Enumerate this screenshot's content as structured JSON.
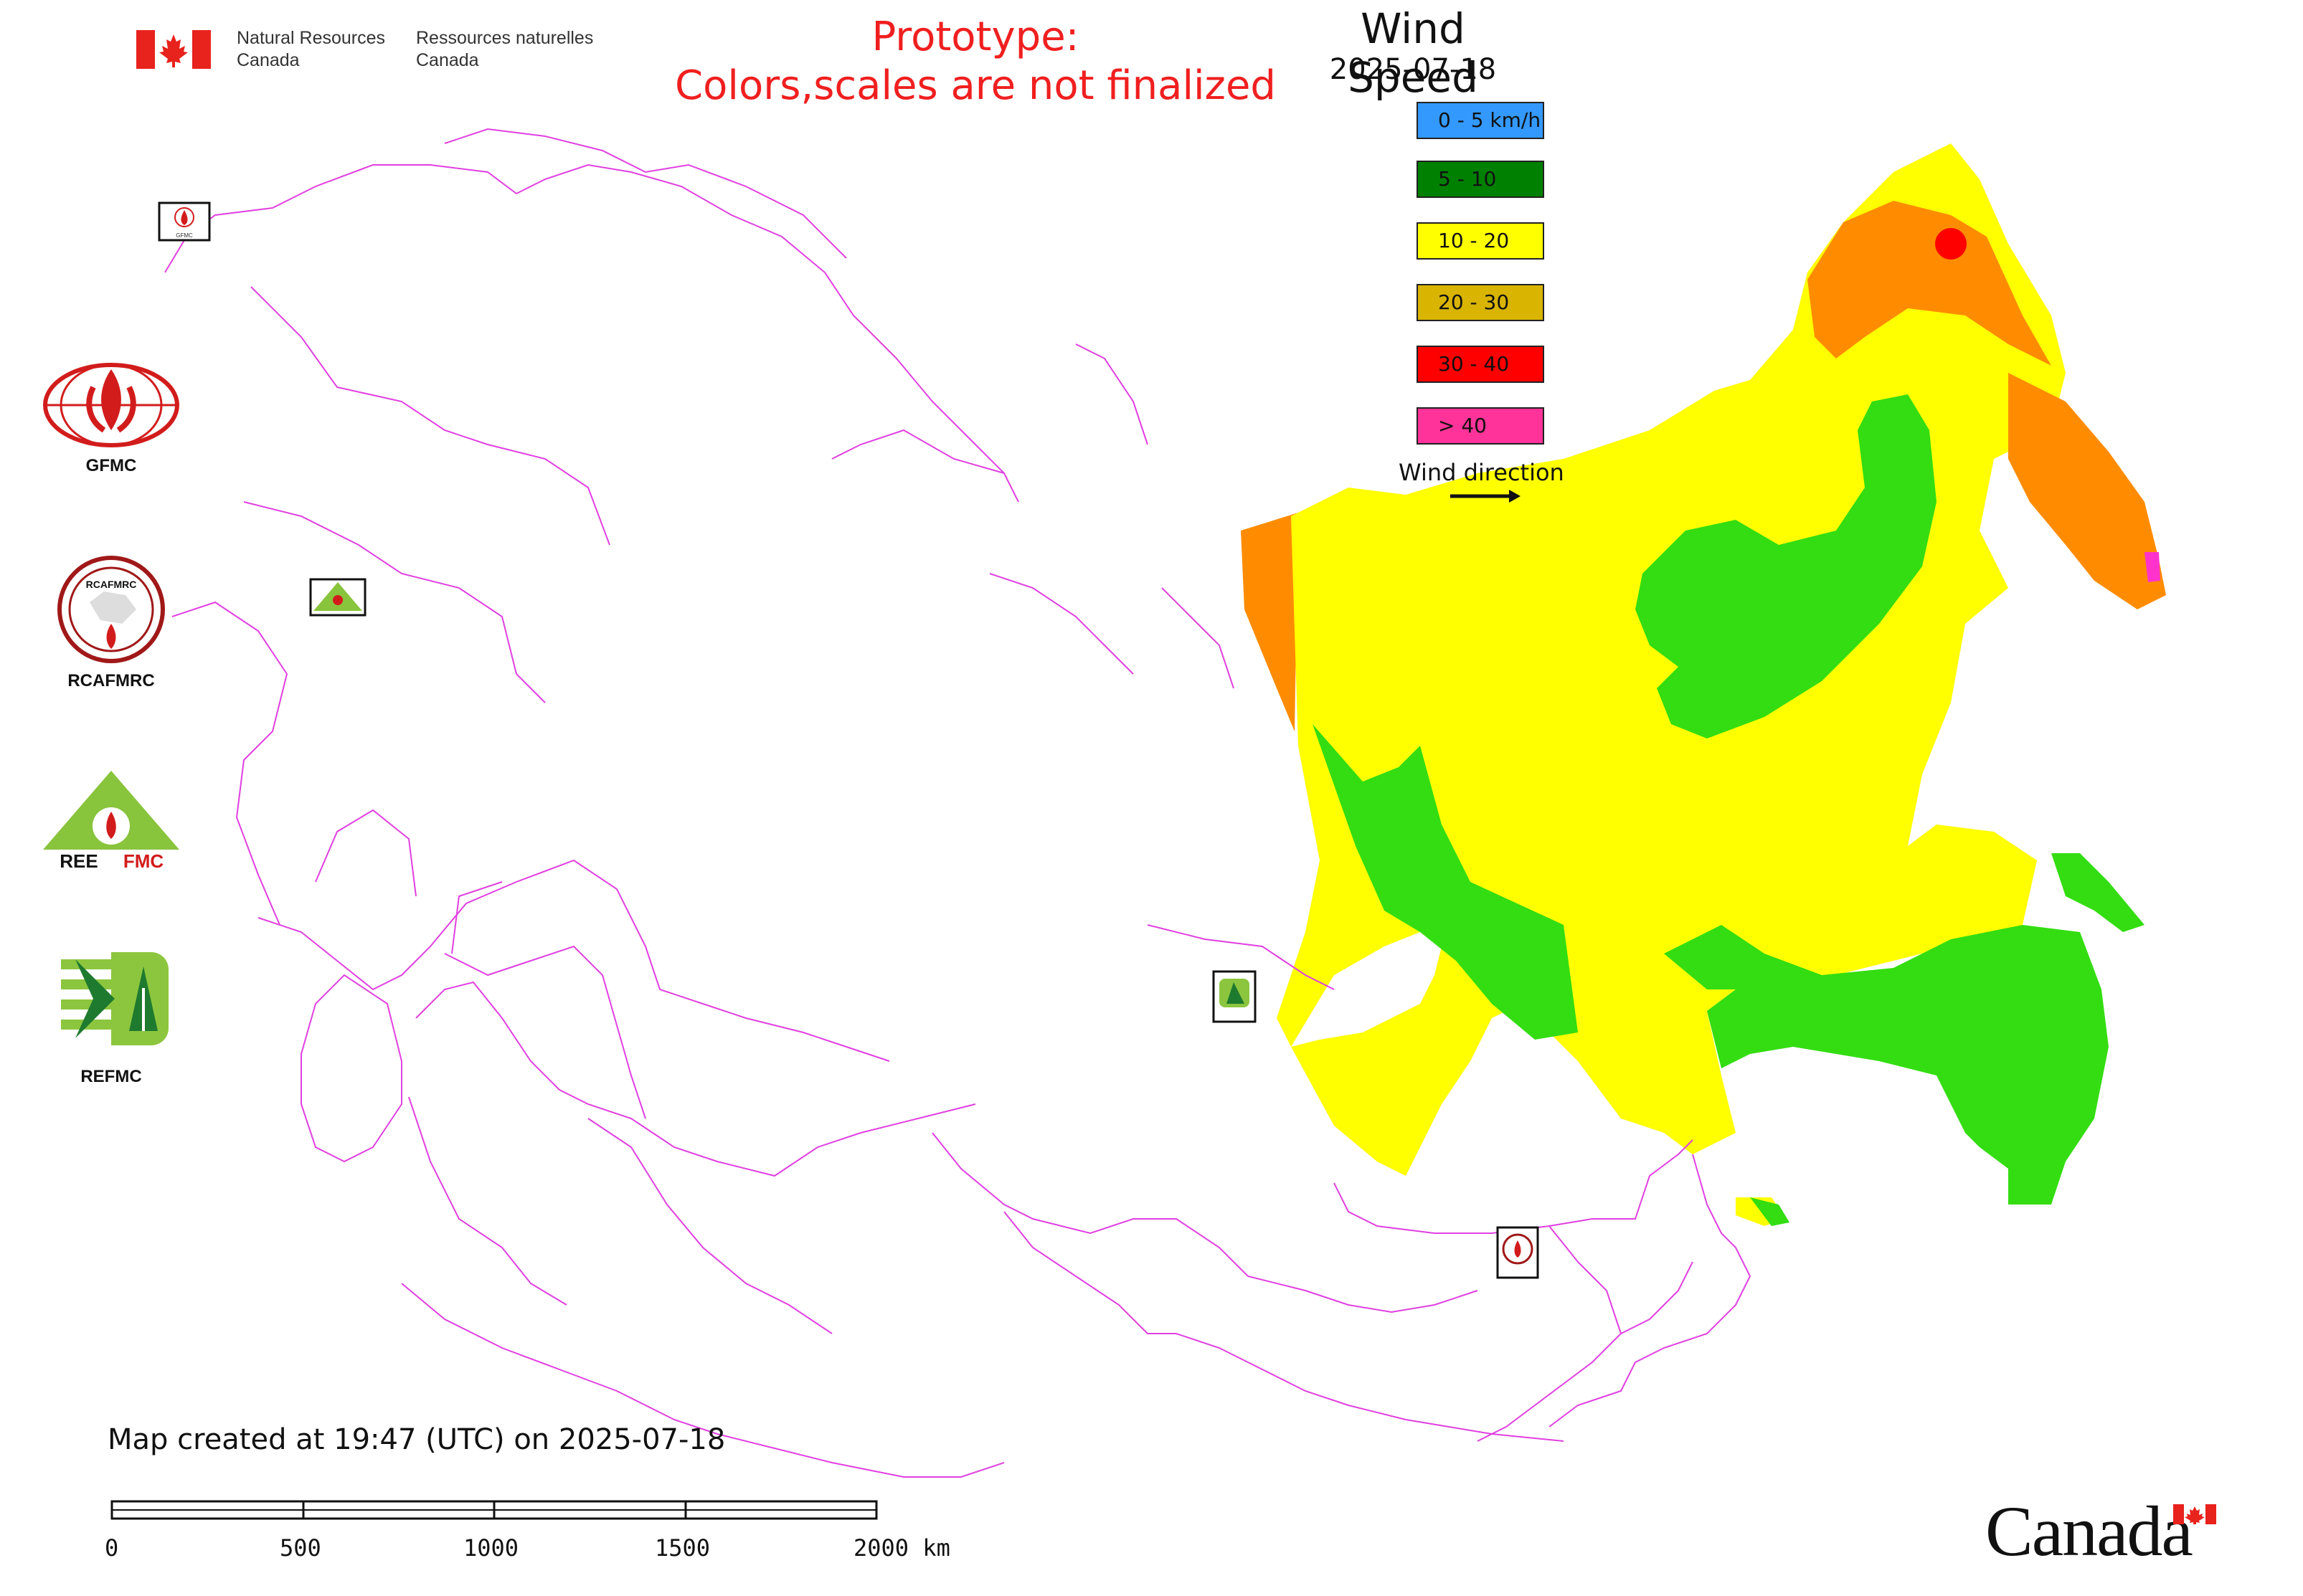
{
  "header": {
    "dept_en": [
      "Natural Resources",
      "Canada"
    ],
    "dept_fr": [
      "Ressources naturelles",
      "Canada"
    ],
    "prototype_lines": [
      "Prototype:",
      "Colors,scales are not finalized"
    ]
  },
  "map": {
    "title": "Wind Speed",
    "date": "2025-07-18",
    "legend": [
      {
        "label": "0 - 5 km/h",
        "color": "#3399ff"
      },
      {
        "label": "5 - 10",
        "color": "#008000"
      },
      {
        "label": "10 - 20",
        "color": "#ffff00"
      },
      {
        "label": "20 - 30",
        "color": "#d9b400"
      },
      {
        "label": "30 - 40",
        "color": "#ff0000"
      },
      {
        "label": "> 40",
        "color": "#ff3399"
      }
    ],
    "wind_direction_label": "Wind direction",
    "boundary_color": "#e040e0",
    "station_markers": [
      "GFMC",
      "REEFMC",
      "REFMC",
      "RCAFMRC"
    ]
  },
  "logos": [
    {
      "name": "GFMC"
    },
    {
      "name": "RCAFMRC"
    },
    {
      "name": "REEFMC"
    },
    {
      "name": "REFMC"
    }
  ],
  "footer": {
    "created_text": "Map created at 19:47 (UTC) on 2025-07-18",
    "scale_labels": [
      "0",
      "500",
      "1000",
      "1500",
      "2000 km"
    ],
    "wordmark": "Canada"
  }
}
